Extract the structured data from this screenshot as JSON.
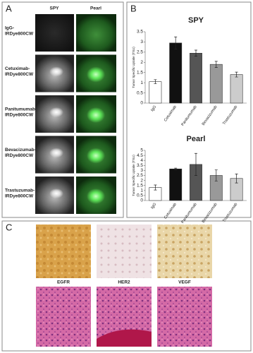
{
  "panels": {
    "a_label": "A",
    "b_label": "B",
    "c_label": "C",
    "a_columns": [
      "SPY",
      "Pearl"
    ],
    "a_rows": [
      [
        "IgG-",
        "IRDye800CW"
      ],
      [
        "Cetuximab-",
        "IRDye800CW"
      ],
      [
        "Panitumumab-",
        "IRDye800CW"
      ],
      [
        "Bevacizumab-",
        "IRDye800CW"
      ],
      [
        "Trastuzumab-",
        "IRDye800CW"
      ]
    ],
    "c_labels": [
      "EGFR",
      "HER2",
      "VEGF"
    ]
  },
  "chart_data": [
    {
      "type": "bar",
      "title": "SPY",
      "ylabel": "Tumor Specific Uptake (TSU)",
      "categories": [
        "IgG",
        "Cetuximab",
        "Panitumumab",
        "Bevacizumab",
        "Trastuzumab"
      ],
      "values": [
        1.05,
        2.95,
        2.45,
        1.9,
        1.4
      ],
      "errors": [
        0.1,
        0.3,
        0.15,
        0.15,
        0.12
      ],
      "colors": [
        "#ffffff",
        "#111111",
        "#555555",
        "#999999",
        "#cccccc"
      ],
      "ylim": [
        0,
        3.5
      ],
      "yticks": [
        0,
        0.5,
        1,
        1.5,
        2,
        2.5,
        3,
        3.5
      ]
    },
    {
      "type": "bar",
      "title": "Pearl",
      "ylabel": "Tumor Specific Uptake (TSU)",
      "categories": [
        "IgG",
        "Cetuximab",
        "Panitumumab",
        "Bevacizumab",
        "Trastuzumab"
      ],
      "values": [
        1.3,
        3.15,
        3.6,
        2.5,
        2.2
      ],
      "errors": [
        0.25,
        0.08,
        1.1,
        0.55,
        0.45
      ],
      "colors": [
        "#ffffff",
        "#111111",
        "#555555",
        "#999999",
        "#cccccc"
      ],
      "ylim": [
        0,
        5
      ],
      "yticks": [
        0,
        0.5,
        1,
        1.5,
        2,
        2.5,
        3,
        3.5,
        4,
        4.5,
        5
      ]
    }
  ]
}
